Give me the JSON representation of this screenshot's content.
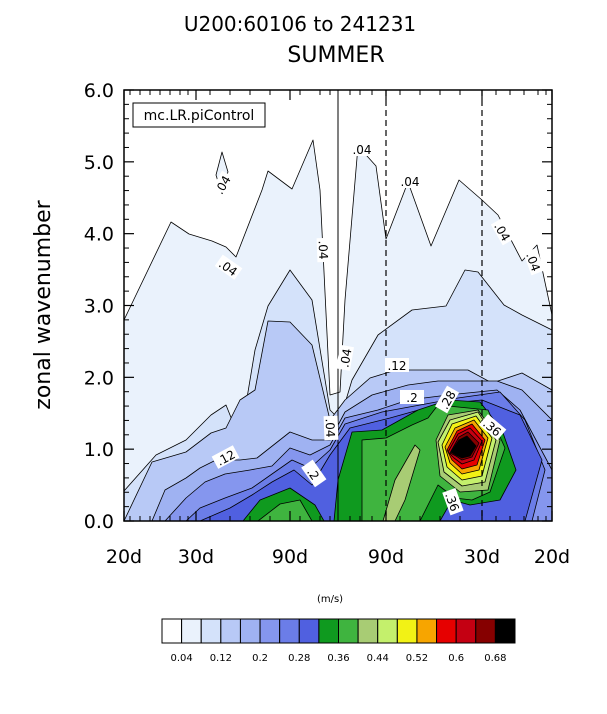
{
  "chart_data": {
    "type": "contour",
    "title_line1": "U200:60106 to 241231",
    "title_line2": "SUMMER",
    "ylabel": "zonal wavenumber",
    "legend_box": "mc.LR.piControl",
    "ylim": [
      0,
      6
    ],
    "y_ticks": [
      "0.0",
      "1.0",
      "2.0",
      "3.0",
      "4.0",
      "5.0",
      "6.0"
    ],
    "x_tick_labels": [
      "20d",
      "30d",
      "90d",
      "90d",
      "30d",
      "20d"
    ],
    "contour_labels": [
      ".04",
      ".04",
      ".04",
      ".04",
      ".04",
      ".04",
      ".04",
      ".04",
      ".04",
      ".12",
      ".12",
      ".2",
      ".2",
      ".28",
      ".36",
      ".36"
    ],
    "colorbar": {
      "unit": "(m/s)",
      "levels": [
        0.04,
        0.08,
        0.12,
        0.16,
        0.2,
        0.24,
        0.28,
        0.32,
        0.36,
        0.4,
        0.44,
        0.48,
        0.52,
        0.56,
        0.6,
        0.64,
        0.68
      ],
      "tick_labels": [
        "0.04",
        "0.12",
        "0.2",
        "0.28",
        "0.36",
        "0.44",
        "0.52",
        "0.6",
        "0.68"
      ],
      "colors": [
        "#ffffff",
        "#eaf2fc",
        "#d4e2fa",
        "#b8c9f6",
        "#9fb2f2",
        "#8596ee",
        "#6b7de8",
        "#5060e0",
        "#0f9a1f",
        "#3fb43f",
        "#a8cc74",
        "#c4f06c",
        "#f2f215",
        "#f7a500",
        "#e60000",
        "#c40012",
        "#860000",
        "#000000"
      ]
    }
  }
}
